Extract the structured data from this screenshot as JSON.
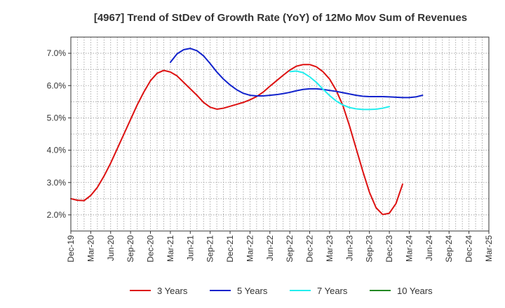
{
  "chart_data": {
    "type": "line",
    "title": "[4967]  Trend of StDev of Growth Rate (YoY) of 12Mo Mov Sum of Revenues",
    "xlabel": "",
    "ylabel": "",
    "x_categories": [
      "Dec-19",
      "Mar-20",
      "Jun-20",
      "Sep-20",
      "Dec-20",
      "Mar-21",
      "Jun-21",
      "Sep-21",
      "Dec-21",
      "Mar-22",
      "Jun-22",
      "Sep-22",
      "Dec-22",
      "Mar-23",
      "Jun-23",
      "Sep-23",
      "Dec-23",
      "Mar-24",
      "Jun-24",
      "Sep-24",
      "Dec-24",
      "Mar-25"
    ],
    "ylim": [
      1.5,
      7.5
    ],
    "yticks": [
      2.0,
      3.0,
      4.0,
      5.0,
      6.0,
      7.0
    ],
    "ytick_labels": [
      "2.0%",
      "3.0%",
      "4.0%",
      "5.0%",
      "6.0%",
      "7.0%"
    ],
    "grid": true,
    "legend_position": "bottom",
    "series": [
      {
        "name": "3 Years",
        "color": "#dd1111",
        "start_index": 0,
        "values": [
          2.5,
          2.45,
          2.44,
          2.6,
          2.85,
          3.2,
          3.6,
          4.05,
          4.5,
          4.95,
          5.4,
          5.8,
          6.15,
          6.38,
          6.47,
          6.42,
          6.3,
          6.1,
          5.9,
          5.7,
          5.48,
          5.33,
          5.27,
          5.3,
          5.36,
          5.42,
          5.48,
          5.56,
          5.66,
          5.8,
          5.98,
          6.15,
          6.32,
          6.48,
          6.6,
          6.65,
          6.65,
          6.58,
          6.43,
          6.2,
          5.85,
          5.38,
          4.75,
          4.05,
          3.35,
          2.7,
          2.22,
          2.01,
          2.05,
          2.35,
          2.95
        ]
      },
      {
        "name": "5 Years",
        "color": "#1122cc",
        "start_index": 15,
        "values": [
          6.72,
          6.98,
          7.11,
          7.15,
          7.08,
          6.92,
          6.68,
          6.42,
          6.2,
          6.02,
          5.87,
          5.76,
          5.7,
          5.68,
          5.68,
          5.7,
          5.72,
          5.75,
          5.79,
          5.84,
          5.88,
          5.9,
          5.9,
          5.88,
          5.85,
          5.82,
          5.78,
          5.74,
          5.7,
          5.67,
          5.66,
          5.66,
          5.66,
          5.65,
          5.64,
          5.63,
          5.63,
          5.65,
          5.7
        ]
      },
      {
        "name": "7 Years",
        "color": "#22eeee",
        "start_index": 33,
        "values": [
          6.43,
          6.45,
          6.4,
          6.27,
          6.1,
          5.89,
          5.69,
          5.52,
          5.4,
          5.32,
          5.28,
          5.26,
          5.26,
          5.27,
          5.3,
          5.35
        ]
      },
      {
        "name": "10 Years",
        "color": "#228822",
        "start_index": 0,
        "values": []
      }
    ]
  }
}
